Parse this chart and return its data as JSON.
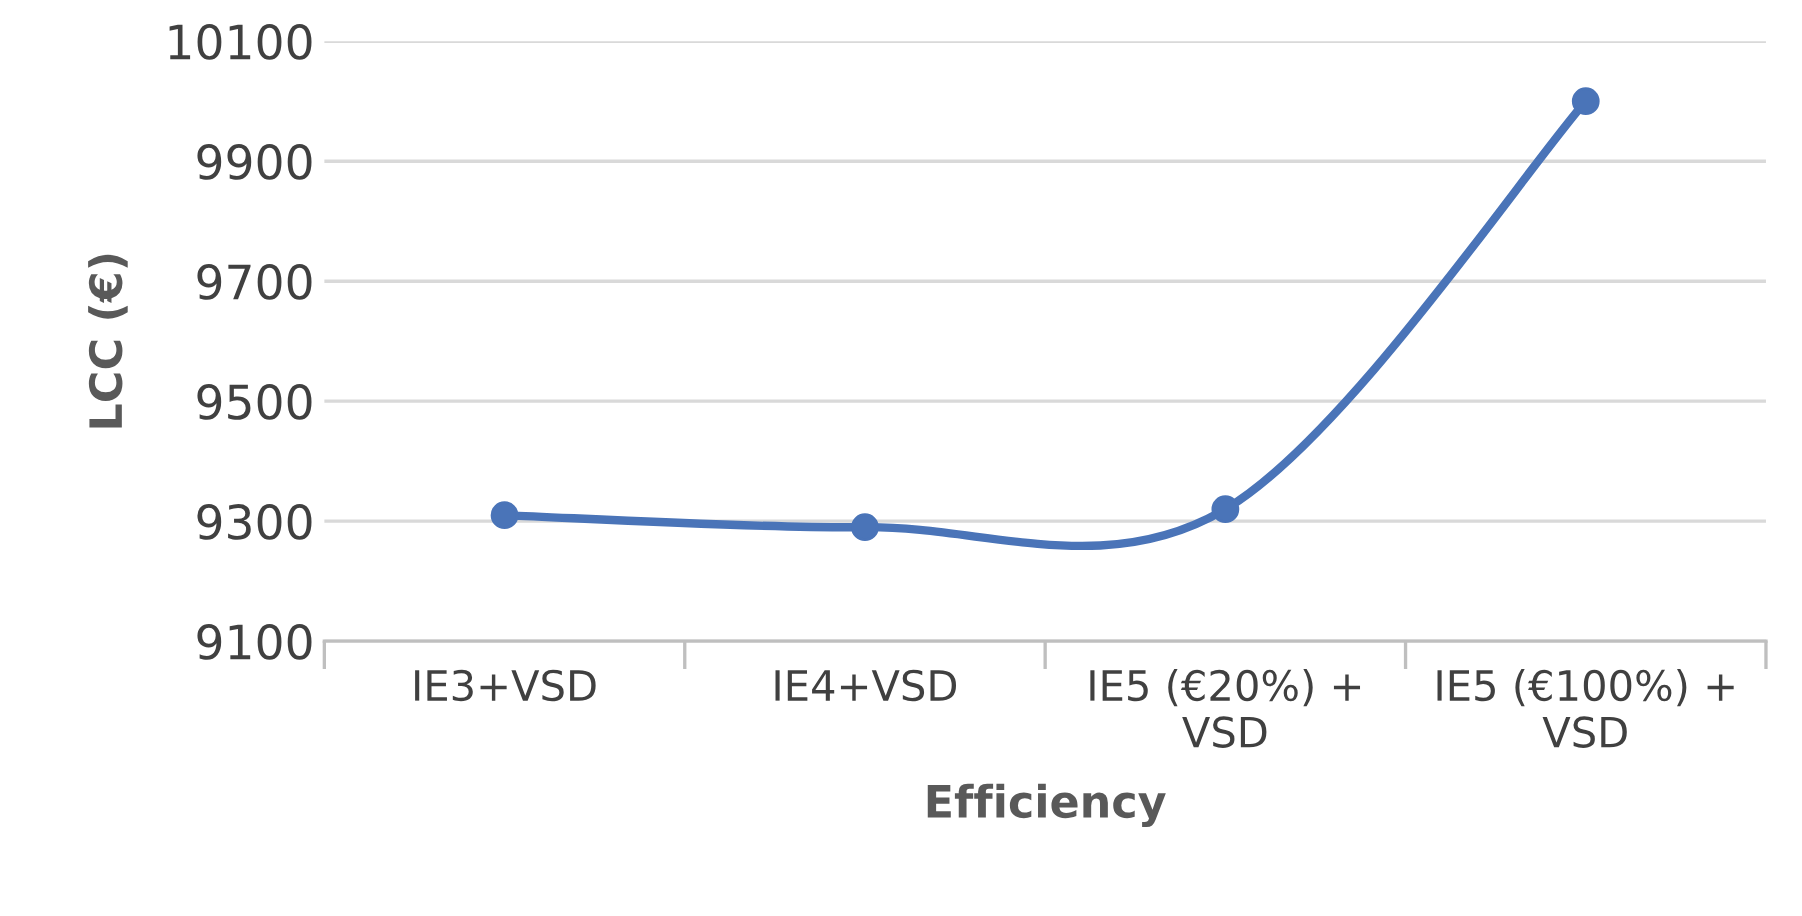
{
  "chart_data": {
    "type": "line",
    "xlabel": "Efficiency",
    "ylabel": "LCC (€)",
    "categories": [
      "IE3+VSD",
      "IE4+VSD",
      "IE5 (€20%) +\nVSD",
      "IE5 (€100%) +\nVSD"
    ],
    "series": [
      {
        "color": "#4a74b8",
        "values": [
          9310,
          9290,
          9320,
          10000
        ]
      }
    ],
    "ylim": [
      9100,
      10100
    ],
    "yticks": [
      9100,
      9300,
      9500,
      9700,
      9900,
      10100
    ],
    "grid": "y",
    "marker": "circle",
    "line_style": "solid"
  }
}
